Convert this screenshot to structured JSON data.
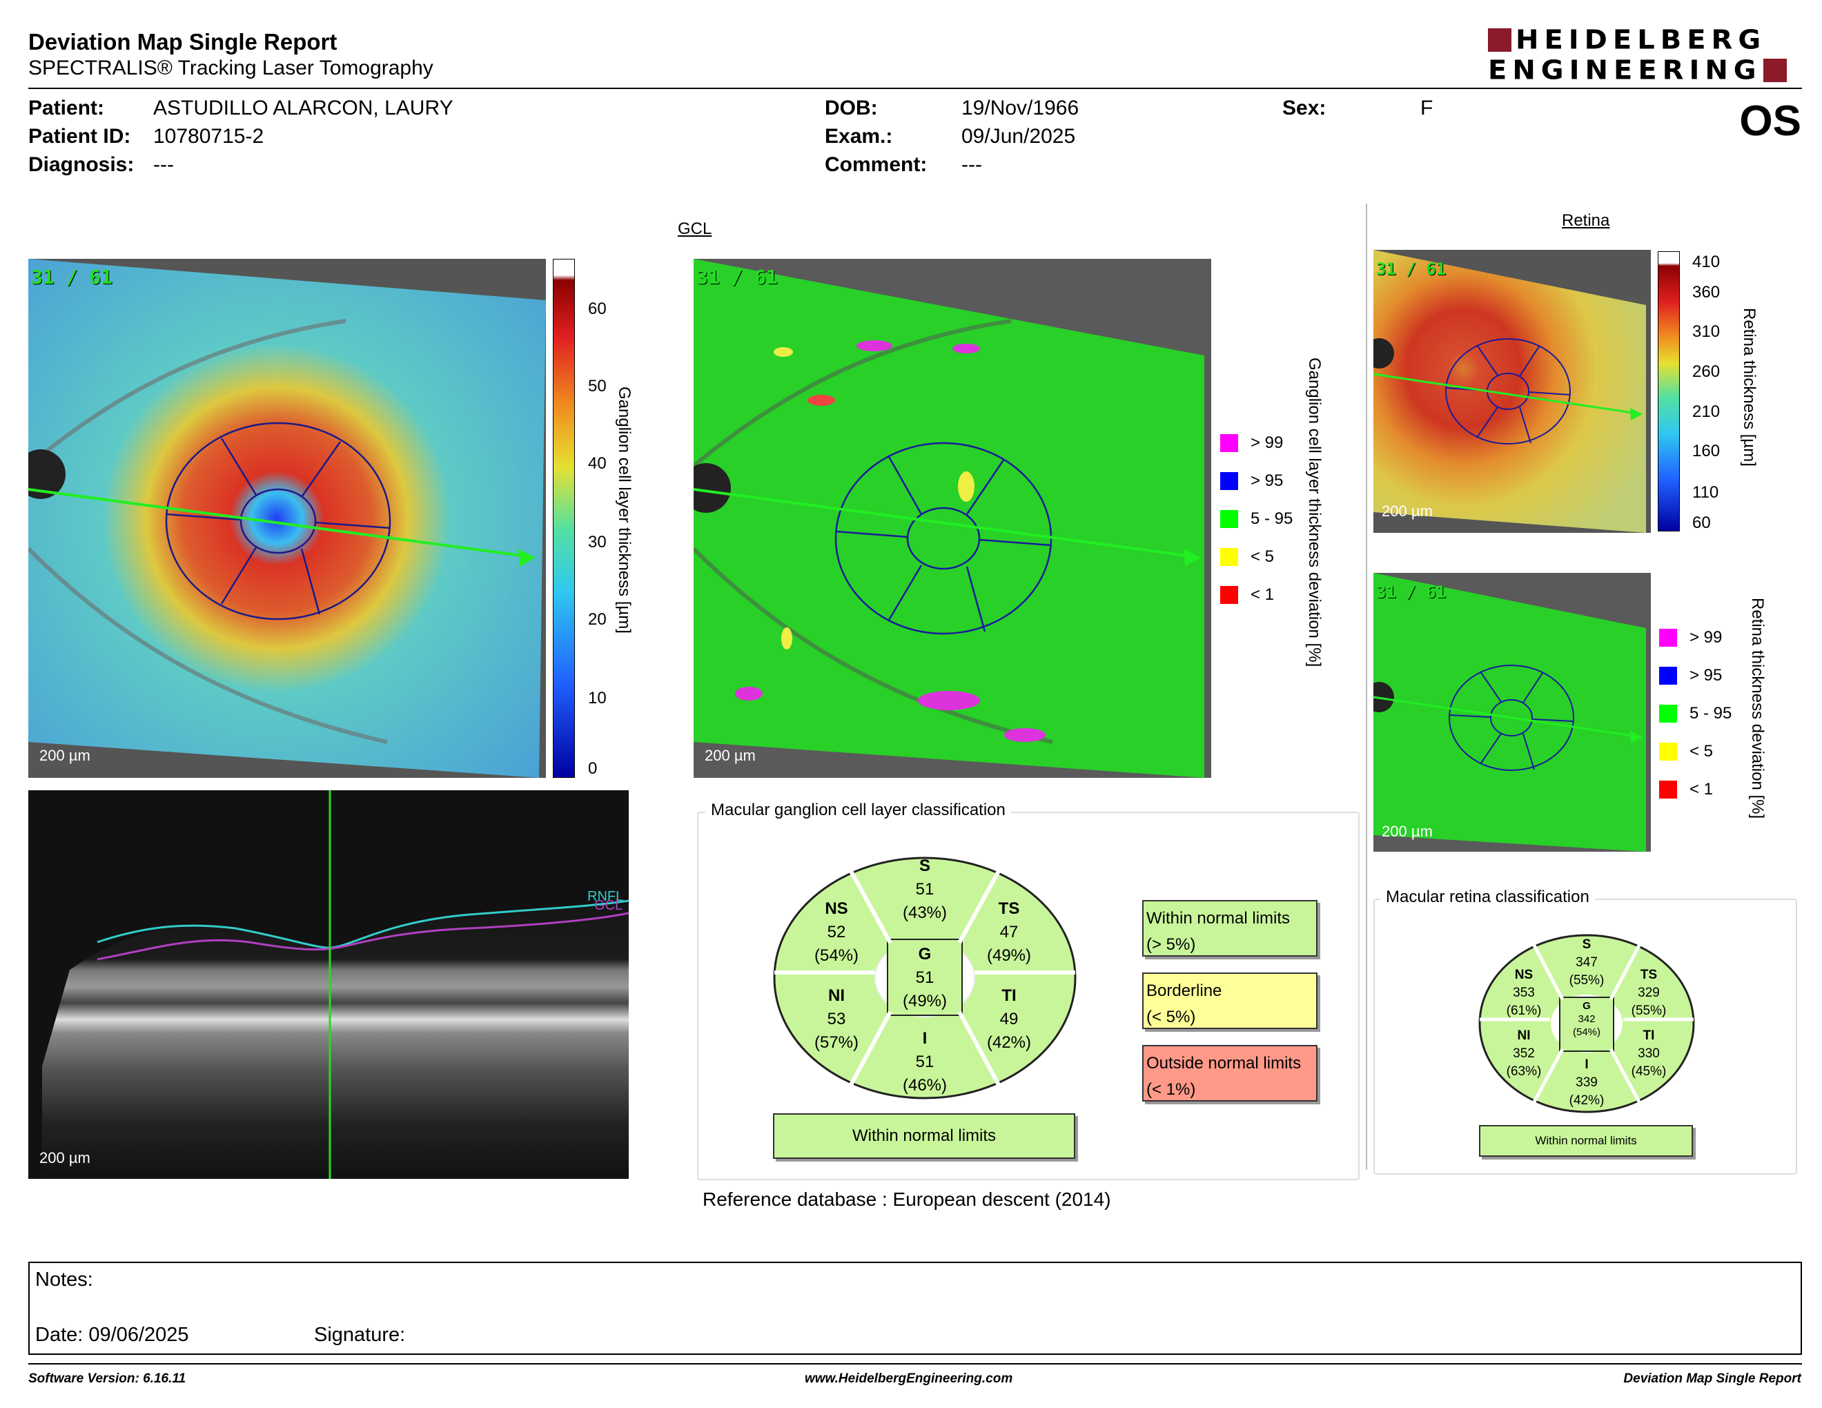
{
  "header": {
    "title": "Deviation Map Single Report",
    "subtitle": "SPECTRALIS® Tracking Laser Tomography",
    "logo_line1": "HEIDELBERG",
    "logo_line2": "ENGINEERING",
    "eye": "OS"
  },
  "patient": {
    "patient_label": "Patient:",
    "patient_value": "ASTUDILLO ALARCON, LAURY",
    "id_label": "Patient ID:",
    "id_value": "10780715-2",
    "diagnosis_label": "Diagnosis:",
    "diagnosis_value": "---",
    "dob_label": "DOB:",
    "dob_value": "19/Nov/1966",
    "exam_label": "Exam.:",
    "exam_value": "09/Jun/2025",
    "comment_label": "Comment:",
    "comment_value": "---",
    "sex_label": "Sex:",
    "sex_value": "F"
  },
  "gcl": {
    "section_title": "GCL",
    "scan_tag": "31 / 61",
    "scale_bar": "200 µm",
    "thickness_ticks": [
      "60",
      "50",
      "40",
      "30",
      "20",
      "10",
      "0"
    ],
    "thickness_label": "Ganglion cell layer thickness [µm]",
    "deviation_label": "Ganglion cell layer thickness deviation [%]",
    "legend": [
      {
        "label": "> 99",
        "color": "#ff00ff"
      },
      {
        "label": "> 95",
        "color": "#0000ff"
      },
      {
        "label": "5 - 95",
        "color": "#00ff00"
      },
      {
        "label": "< 5",
        "color": "#ffff00"
      },
      {
        "label": "< 1",
        "color": "#ff0000"
      }
    ],
    "bscan_labels": {
      "rnfl": "RNFL",
      "gcl": "GCL"
    }
  },
  "retina": {
    "section_title": "Retina",
    "scan_tag": "31 / 61",
    "scale_bar": "200 µm",
    "thickness_ticks": [
      "410",
      "360",
      "310",
      "260",
      "210",
      "160",
      "110",
      "60"
    ],
    "thickness_label": "Retina thickness [µm]",
    "deviation_label": "Retina thickness deviation [%]",
    "legend": [
      {
        "label": "> 99",
        "color": "#ff00ff"
      },
      {
        "label": "> 95",
        "color": "#0000ff"
      },
      {
        "label": "5 - 95",
        "color": "#00ff00"
      },
      {
        "label": "< 5",
        "color": "#ffff00"
      },
      {
        "label": "< 1",
        "color": "#ff0000"
      }
    ]
  },
  "gcl_classification": {
    "title": "Macular ganglion cell layer classification",
    "sectors": {
      "S": {
        "name": "S",
        "value": "51",
        "pct": "(43%)"
      },
      "NS": {
        "name": "NS",
        "value": "52",
        "pct": "(54%)"
      },
      "TS": {
        "name": "TS",
        "value": "47",
        "pct": "(49%)"
      },
      "G": {
        "name": "G",
        "value": "51",
        "pct": "(49%)"
      },
      "NI": {
        "name": "NI",
        "value": "53",
        "pct": "(57%)"
      },
      "TI": {
        "name": "TI",
        "value": "49",
        "pct": "(42%)"
      },
      "I": {
        "name": "I",
        "value": "51",
        "pct": "(46%)"
      }
    },
    "result": "Within normal limits",
    "legend": {
      "within": "Within normal limits",
      "within_sub": "(> 5%)",
      "borderline": "Borderline",
      "borderline_sub": "(< 5%)",
      "outside": "Outside normal limits",
      "outside_sub": "(< 1%)"
    },
    "colors": {
      "within": "#c8f59a",
      "borderline": "#ffff99",
      "outside": "#ff9988"
    }
  },
  "retina_classification": {
    "title": "Macular retina classification",
    "sectors": {
      "S": {
        "name": "S",
        "value": "347",
        "pct": "(55%)"
      },
      "NS": {
        "name": "NS",
        "value": "353",
        "pct": "(61%)"
      },
      "TS": {
        "name": "TS",
        "value": "329",
        "pct": "(55%)"
      },
      "G": {
        "name": "G",
        "value": "342",
        "pct": "(54%)"
      },
      "NI": {
        "name": "NI",
        "value": "352",
        "pct": "(63%)"
      },
      "TI": {
        "name": "TI",
        "value": "330",
        "pct": "(45%)"
      },
      "I": {
        "name": "I",
        "value": "339",
        "pct": "(42%)"
      }
    },
    "result": "Within normal limits"
  },
  "reference": {
    "label": "Reference database :",
    "value": "European descent (2014)"
  },
  "notes": {
    "notes_label": "Notes:",
    "date_label": "Date: 09/06/2025",
    "signature_label": "Signature:"
  },
  "footer": {
    "software": "Software Version: 6.16.11",
    "website": "www.HeidelbergEngineering.com",
    "report": "Deviation Map Single Report"
  }
}
